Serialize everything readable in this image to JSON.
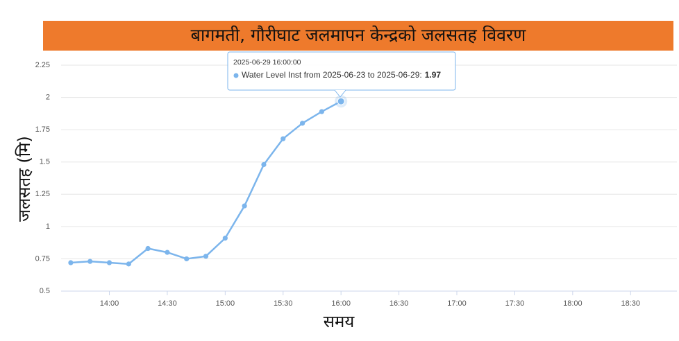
{
  "chart_data": {
    "type": "line",
    "title": "बागमती, गौरीघाट जलमापन केन्द्रको जलसतह विवरण",
    "x_label": "समय",
    "y_label": "जलसतह (मि)",
    "x": [
      "13:40",
      "13:50",
      "14:00",
      "14:10",
      "14:20",
      "14:30",
      "14:40",
      "14:50",
      "15:00",
      "15:10",
      "15:20",
      "15:30",
      "15:40",
      "15:50",
      "16:00"
    ],
    "series": [
      {
        "color": "#7cb5ec",
        "values": [
          0.72,
          0.73,
          0.72,
          0.71,
          0.83,
          0.8,
          0.75,
          0.77,
          0.91,
          1.16,
          1.48,
          1.68,
          1.8,
          1.89,
          1.97
        ]
      }
    ],
    "xlim": [
      "13:35",
      "18:54"
    ],
    "xticks": [
      "14:00",
      "14:30",
      "15:00",
      "15:30",
      "16:00",
      "16:30",
      "17:00",
      "17:30",
      "18:00",
      "18:30"
    ],
    "ylim": [
      0.5,
      2.25
    ],
    "yticks": [
      0.5,
      0.75,
      1,
      1.25,
      1.5,
      1.75,
      2,
      2.25
    ],
    "grid": true,
    "tooltip": {
      "header": "2025-06-29 16:00:00",
      "series_label": "Water Level Inst from 2025-06-23 to 2025-06-29:"
    }
  }
}
